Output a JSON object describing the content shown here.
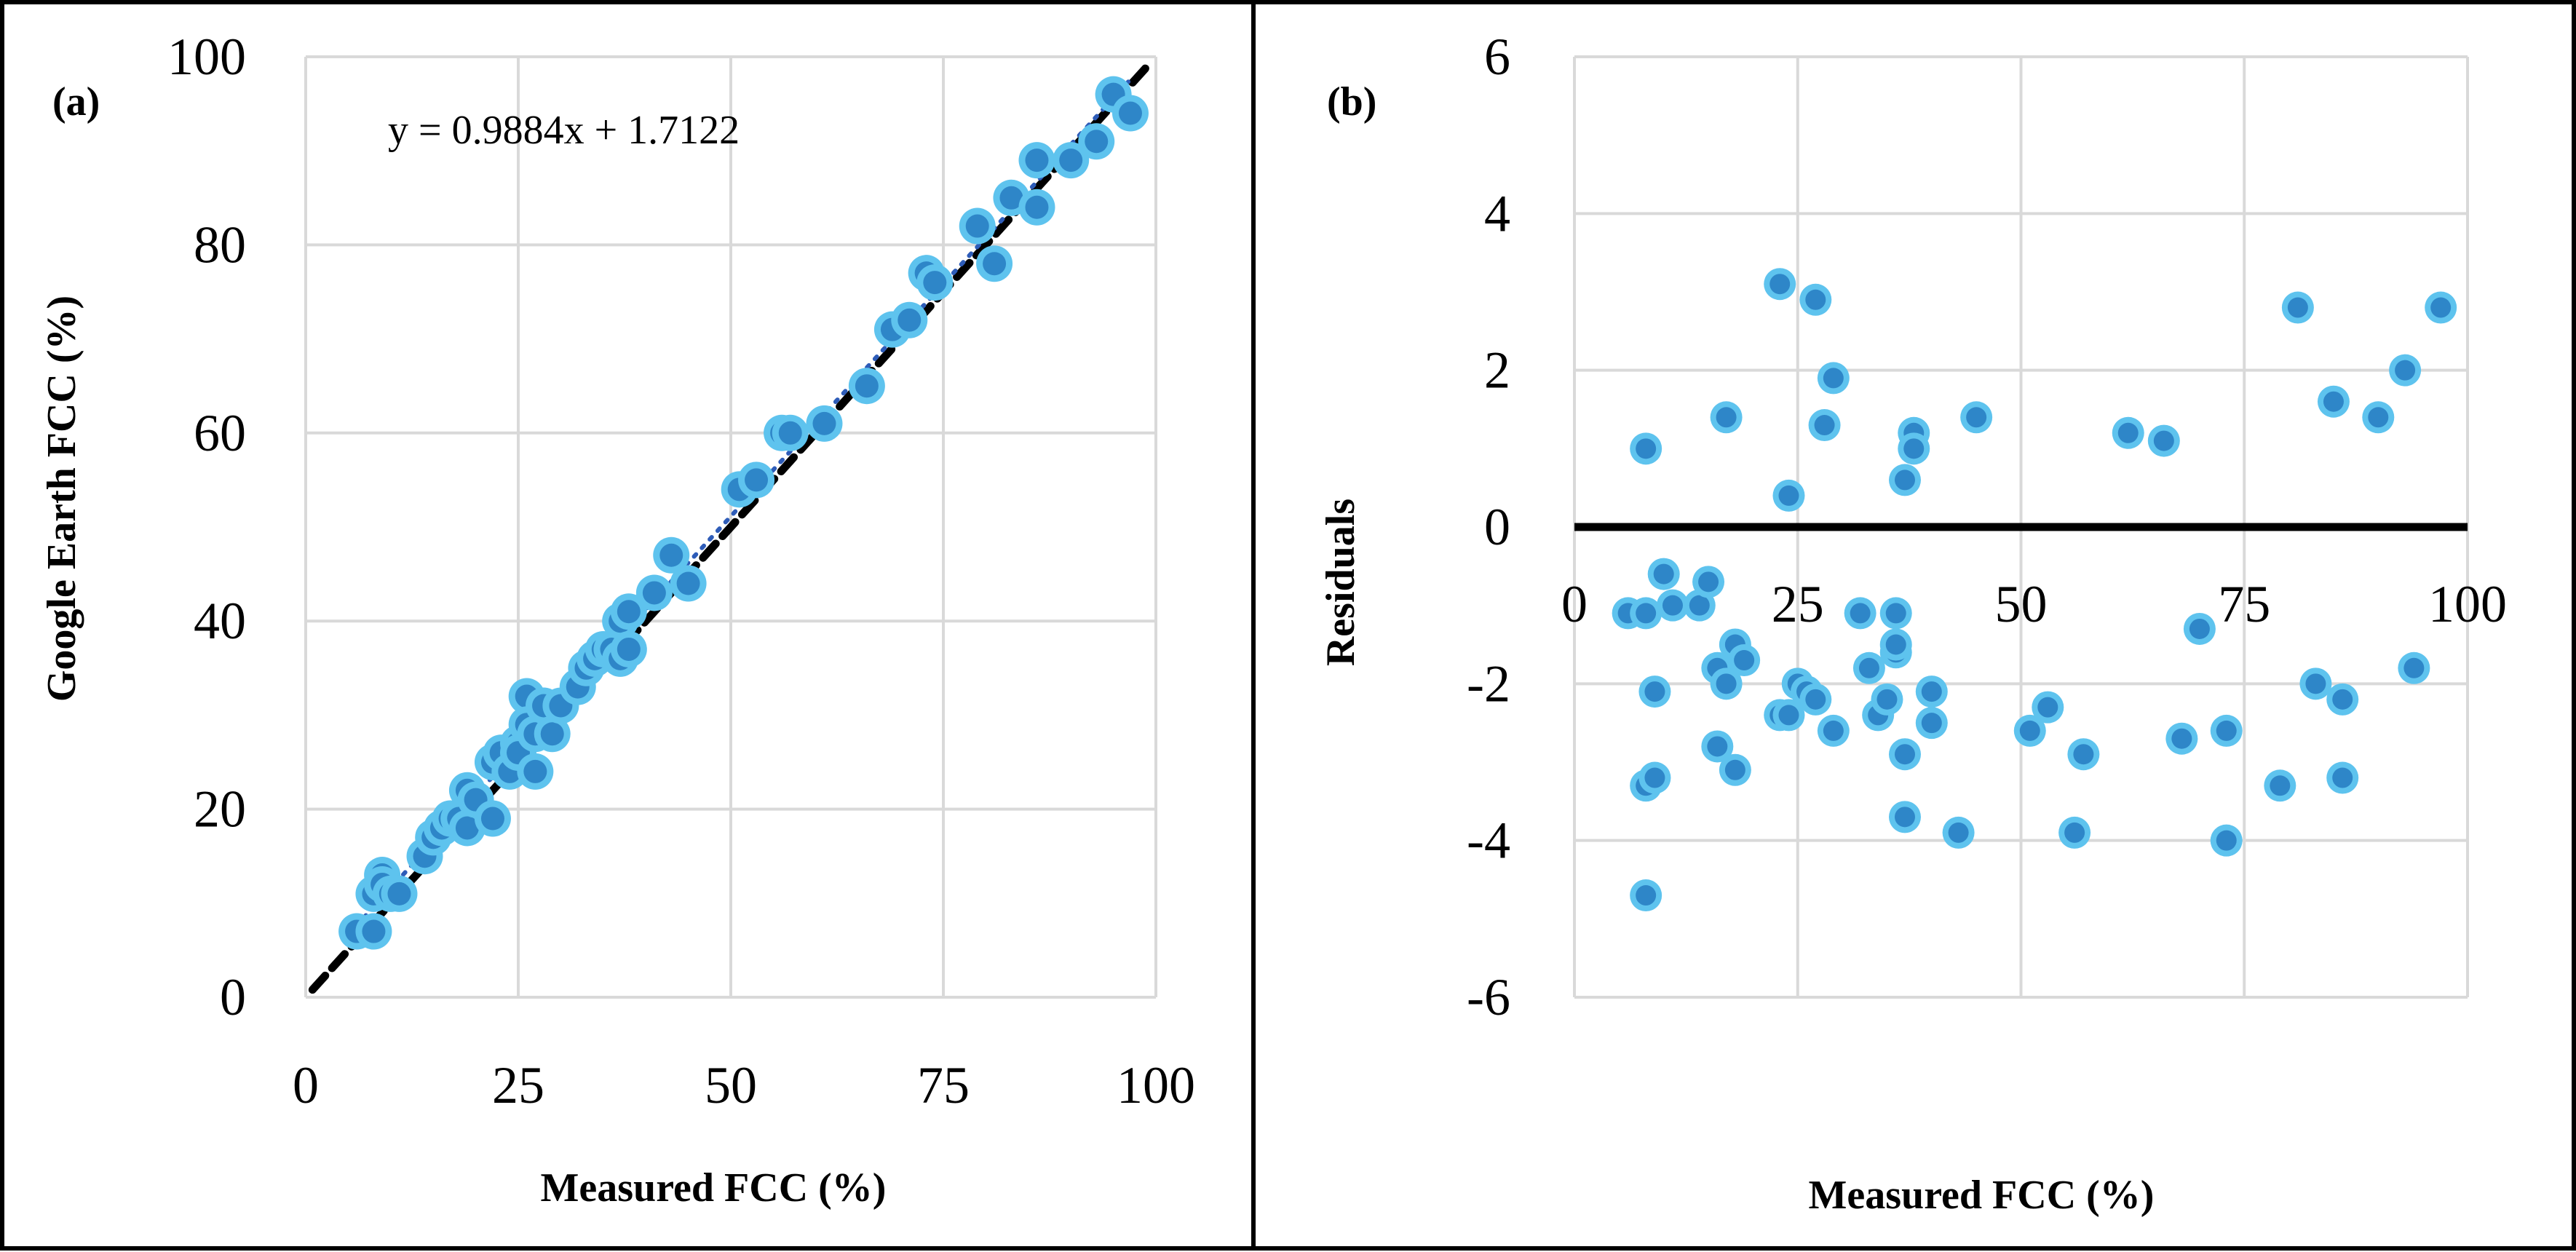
{
  "chart_data": [
    {
      "panel_label": "(a)",
      "type": "scatter",
      "xlabel": "Measured FCC (%)",
      "ylabel": "Google Earth FCC (%)",
      "xlim": [
        0,
        100
      ],
      "ylim": [
        0,
        100
      ],
      "xticks": [
        "0",
        "25",
        "50",
        "75",
        "100"
      ],
      "yticks": [
        "0",
        "20",
        "40",
        "60",
        "80",
        "100"
      ],
      "grid": true,
      "trendline_equation": "y = 0.9884x + 1.7122",
      "trendline": {
        "slope": 0.9884,
        "intercept": 1.7122
      },
      "reference_line": "1:1",
      "colors": {
        "marker_fill": "#2e86c8",
        "marker_halo": "#5ec3ee",
        "trendline": "#2e5cb8",
        "reference": "#000000"
      },
      "series": [
        {
          "name": "FCC",
          "x": [
            6,
            8,
            8,
            9,
            9,
            10,
            11,
            14,
            15,
            16,
            17,
            18,
            19,
            19,
            20,
            22,
            22,
            23,
            24,
            25,
            25,
            26,
            26,
            27,
            27,
            28,
            29,
            30,
            32,
            33,
            34,
            35,
            36,
            37,
            37,
            38,
            38,
            41,
            43,
            45,
            51,
            53,
            56,
            57,
            61,
            66,
            69,
            71,
            73,
            74,
            79,
            81,
            83,
            86,
            86,
            90,
            93,
            95,
            97
          ],
          "y": [
            7,
            7,
            11,
            13,
            12,
            11,
            11,
            15,
            17,
            18,
            19,
            19,
            22,
            18,
            21,
            25,
            19,
            26,
            24,
            27,
            26,
            32,
            29,
            28,
            24,
            31,
            28,
            31,
            33,
            35,
            36,
            37,
            37,
            36,
            40,
            41,
            37,
            43,
            47,
            44,
            54,
            55,
            60,
            60,
            61,
            65,
            71,
            72,
            77,
            76,
            82,
            78,
            85,
            84,
            89,
            89,
            91,
            96,
            94
          ]
        }
      ]
    },
    {
      "panel_label": "(b)",
      "type": "scatter",
      "xlabel": "Measured FCC (%)",
      "ylabel": "Residuals",
      "xlim": [
        0,
        100
      ],
      "ylim": [
        -6,
        6
      ],
      "xticks": [
        "0",
        "25",
        "50",
        "75",
        "100"
      ],
      "yticks": [
        "6",
        "4",
        "2",
        "0",
        "-2",
        "-4",
        "-6"
      ],
      "grid": true,
      "zero_line": true,
      "colors": {
        "marker_fill": "#2e86c8",
        "marker_halo": "#5ec3ee",
        "zero_line": "#000000"
      },
      "series": [
        {
          "name": "Residuals",
          "x": [
            8,
            17,
            23,
            24,
            27,
            28,
            29,
            37,
            38,
            38,
            45,
            62,
            66,
            81,
            85,
            90,
            93,
            97,
            6,
            8,
            10,
            11,
            14,
            15,
            16,
            16,
            17,
            18,
            18,
            19,
            25,
            26,
            27,
            32,
            33,
            34,
            35,
            36,
            36,
            36,
            37,
            40,
            40,
            51,
            53,
            56,
            57,
            68,
            70,
            73,
            73,
            79,
            83,
            86,
            86,
            94,
            8,
            8,
            9,
            9,
            23,
            24,
            29,
            37,
            43
          ],
          "y": [
            1.0,
            1.4,
            3.1,
            0.4,
            2.9,
            1.3,
            1.9,
            0.6,
            1.2,
            1.0,
            1.4,
            1.2,
            1.1,
            2.8,
            1.6,
            1.4,
            2.0,
            2.8,
            -1.1,
            -1.1,
            -0.6,
            -1.0,
            -1.0,
            -0.7,
            -1.8,
            -2.8,
            -2.0,
            -1.5,
            -3.1,
            -1.7,
            -2.0,
            -2.1,
            -2.2,
            -1.1,
            -1.8,
            -2.4,
            -2.2,
            -1.6,
            -1.1,
            -1.5,
            -2.9,
            -2.1,
            -2.5,
            -2.6,
            -2.3,
            -3.9,
            -2.9,
            -2.7,
            -1.3,
            -2.6,
            -4.0,
            -3.3,
            -2.0,
            -2.2,
            -3.2,
            -1.8,
            -3.3,
            -4.7,
            -2.1,
            -3.2,
            -2.4,
            -2.4,
            -2.6,
            -3.7,
            -3.9
          ]
        }
      ]
    }
  ]
}
